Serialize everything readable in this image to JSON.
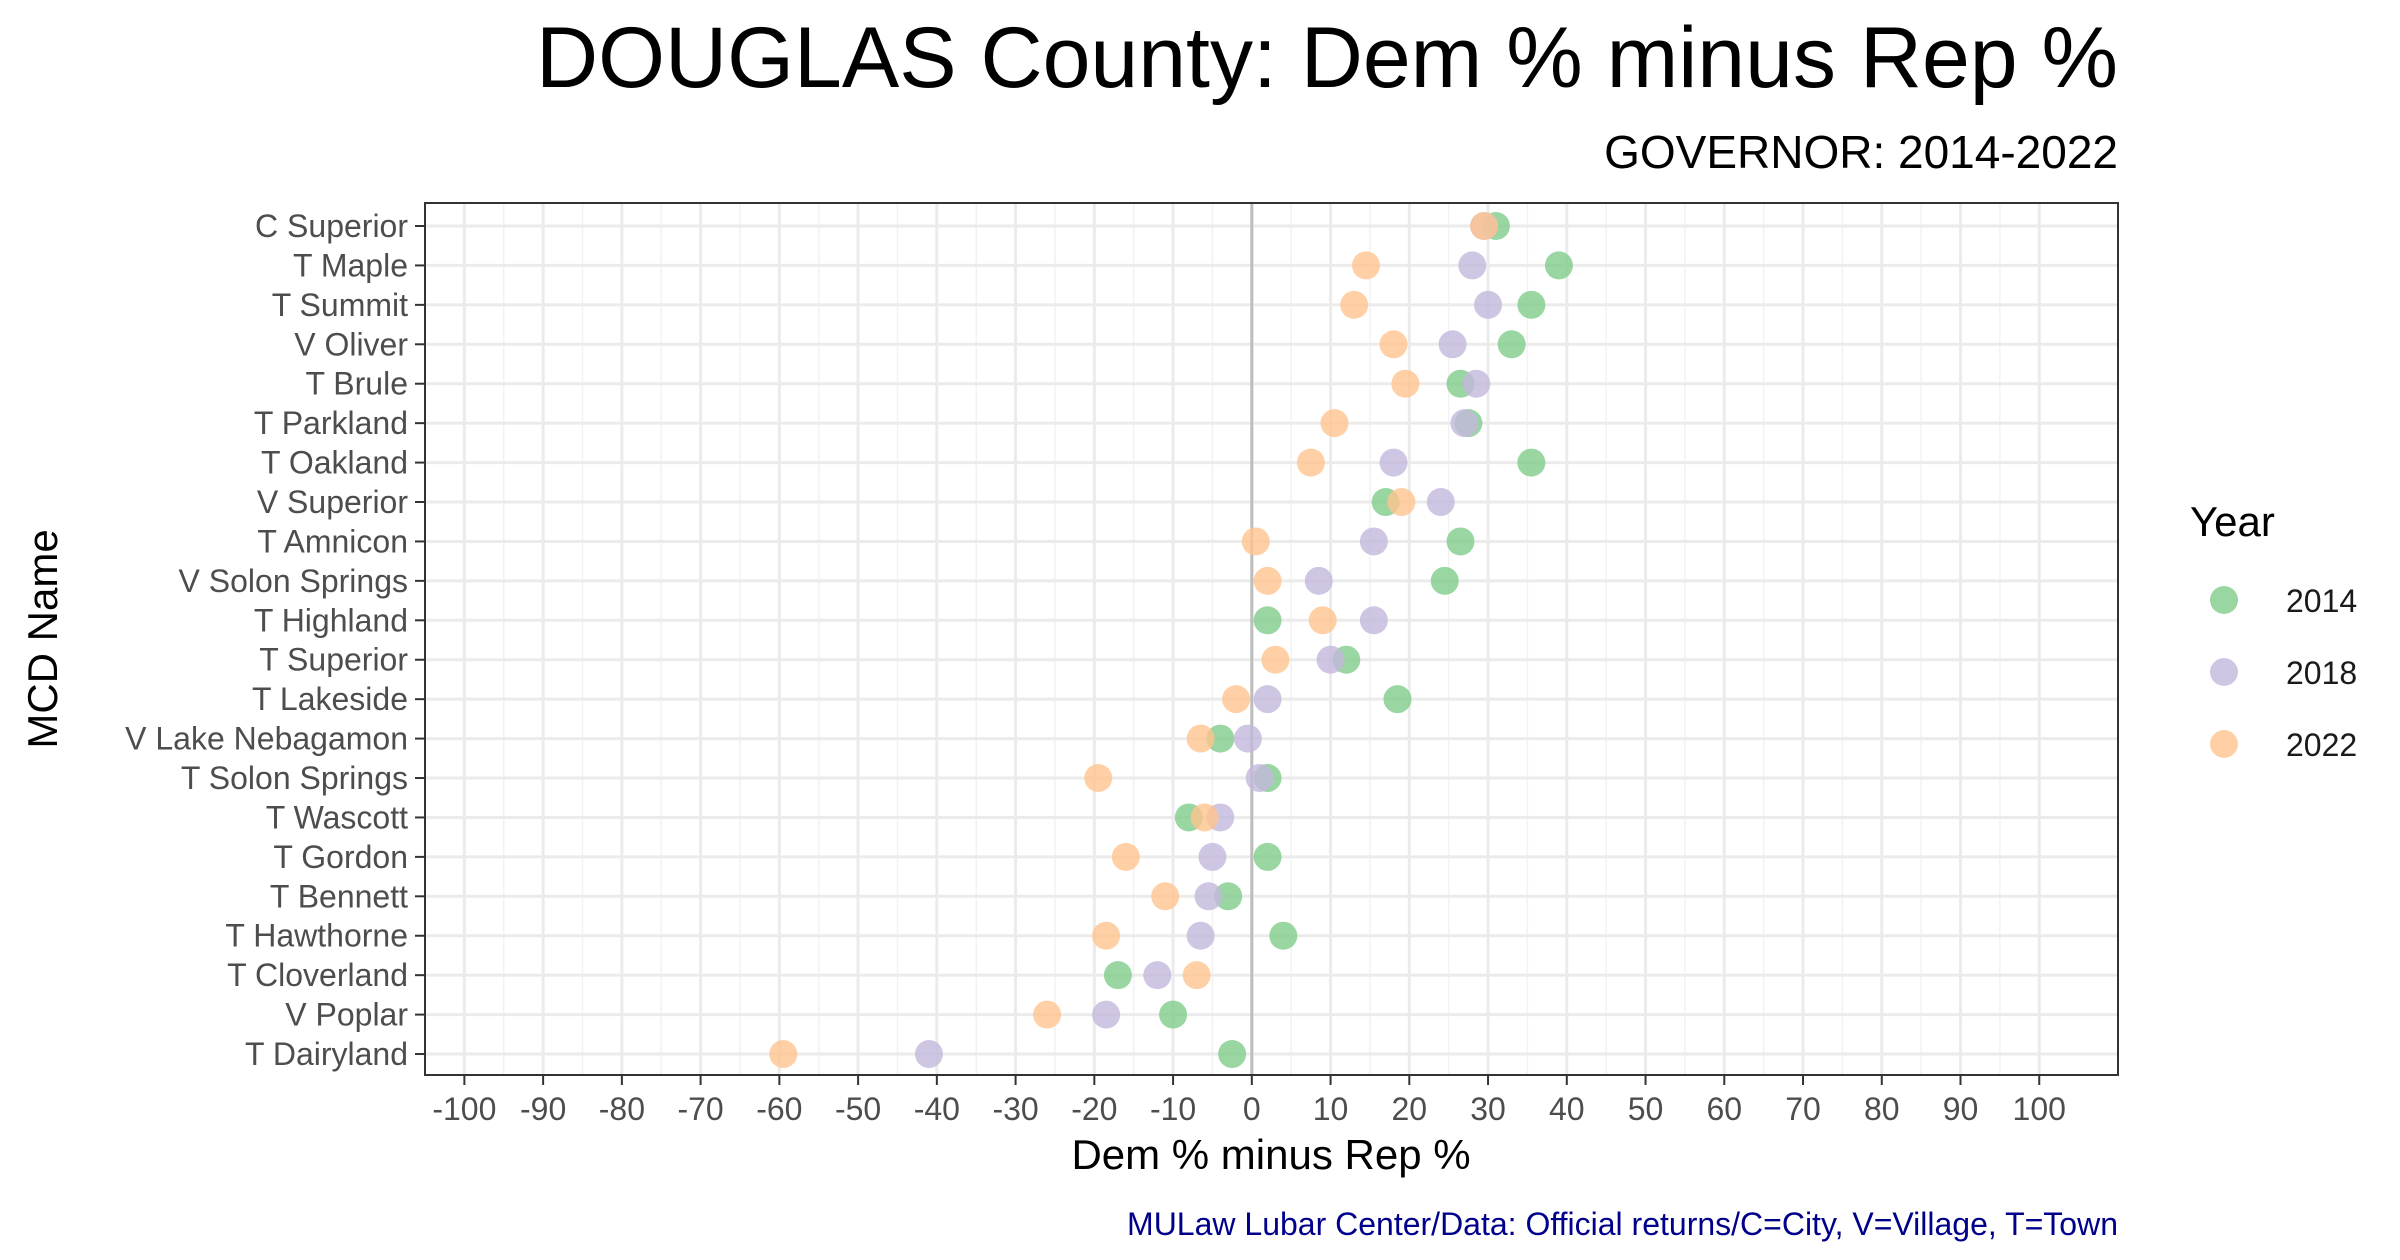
{
  "chart_data": {
    "type": "scatter",
    "title": "DOUGLAS County: Dem % minus Rep %",
    "subtitle": "GOVERNOR: 2014-2022",
    "xlabel": "Dem % minus Rep %",
    "ylabel": "MCD Name",
    "caption": "MULaw Lubar Center/Data: Official returns/C=City, V=Village, T=Town",
    "xlim": [
      -105,
      110
    ],
    "xticks": [
      -100,
      -90,
      -80,
      -70,
      -60,
      -50,
      -40,
      -30,
      -20,
      -10,
      0,
      10,
      20,
      30,
      40,
      50,
      60,
      70,
      80,
      90,
      100
    ],
    "xtick_labels": [
      "-100",
      "-90",
      "-80",
      "-70",
      "-60",
      "-50",
      "-40",
      "-30",
      "-20",
      "-10",
      "0",
      "10",
      "20",
      "30",
      "40",
      "50",
      "60",
      "70",
      "80",
      "90",
      "100"
    ],
    "grid": true,
    "reference_line_x": 0,
    "legend": {
      "title": "Year",
      "position": "right"
    },
    "categories": [
      "C Superior",
      "T Maple",
      "T Summit",
      "V Oliver",
      "T Brule",
      "T Parkland",
      "T Oakland",
      "V Superior",
      "T Amnicon",
      "V Solon Springs",
      "T Highland",
      "T Superior",
      "T Lakeside",
      "V Lake Nebagamon",
      "T Solon Springs",
      "T Wascott",
      "T Gordon",
      "T Bennett",
      "T Hawthorne",
      "T Cloverland",
      "V Poplar",
      "T Dairyland"
    ],
    "series": [
      {
        "name": "2014",
        "color": "#7fcc8a",
        "values": [
          31,
          39,
          35.5,
          33,
          26.5,
          27.5,
          35.5,
          17,
          26.5,
          24.5,
          2,
          12,
          18.5,
          -4,
          2,
          -8,
          2,
          -3,
          4,
          -17,
          -10,
          -2.5
        ]
      },
      {
        "name": "2018",
        "color": "#c3b8dc",
        "values": [
          29.5,
          28,
          30,
          25.5,
          28.5,
          27,
          18,
          24,
          15.5,
          8.5,
          15.5,
          10,
          2,
          -0.5,
          1,
          -4,
          -5,
          -5.5,
          -6.5,
          -12,
          -18.5,
          -41
        ]
      },
      {
        "name": "2022",
        "color": "#ffc48f",
        "values": [
          29.5,
          14.5,
          13,
          18,
          19.5,
          10.5,
          7.5,
          19,
          0.5,
          2,
          9,
          3,
          -2,
          -6.5,
          -19.5,
          -6,
          -16,
          -11,
          -18.5,
          -7,
          -26,
          -59.5
        ]
      }
    ]
  }
}
